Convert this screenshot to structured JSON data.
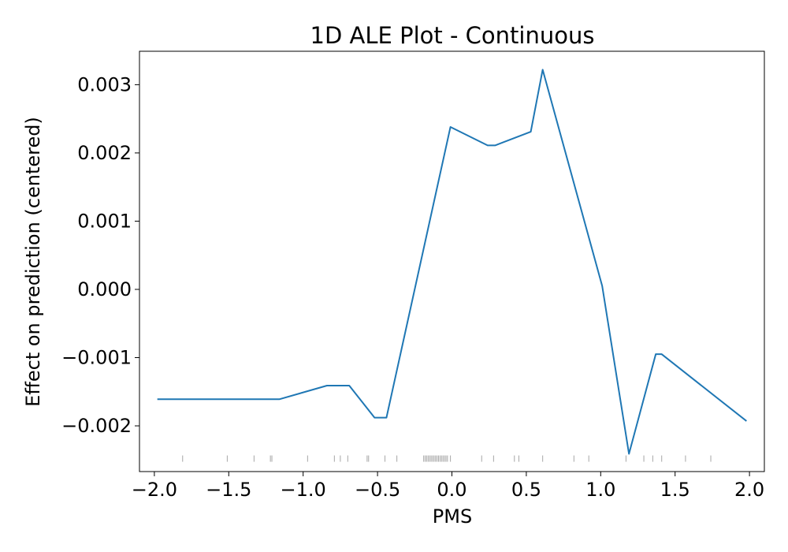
{
  "chart_data": {
    "type": "line",
    "title": "1D ALE Plot - Continuous",
    "xlabel": "PMS",
    "ylabel": "Effect on prediction (centered)",
    "xlim": [
      -2.1,
      2.1
    ],
    "ylim": [
      -0.00267,
      0.00349
    ],
    "xticks": [
      -2.0,
      -1.5,
      -1.0,
      -0.5,
      0.0,
      0.5,
      1.0,
      1.5,
      2.0
    ],
    "xtick_labels": [
      "−2.0",
      "−1.5",
      "−1.0",
      "−0.5",
      "0.0",
      "0.5",
      "1.0",
      "1.5",
      "2.0"
    ],
    "yticks": [
      -0.002,
      -0.001,
      0.0,
      0.001,
      0.002,
      0.003
    ],
    "ytick_labels": [
      "−0.002",
      "−0.001",
      "0.000",
      "0.001",
      "0.002",
      "0.003"
    ],
    "grid": false,
    "line_color": "#1f77b4",
    "series": [
      {
        "x": [
          -1.98,
          -1.8,
          -1.5,
          -1.2,
          -1.16,
          -0.84,
          -0.69,
          -0.52,
          -0.44,
          -0.01,
          0.24,
          0.29,
          0.53,
          0.61,
          1.01,
          1.19,
          1.37,
          1.41,
          1.98
        ],
        "y": [
          -0.00161,
          -0.00161,
          -0.00161,
          -0.00161,
          -0.00161,
          -0.00141,
          -0.00141,
          -0.00188,
          -0.00188,
          0.00238,
          0.00211,
          0.00211,
          0.00231,
          0.00322,
          5e-05,
          -0.00241,
          -0.00095,
          -0.00095,
          -0.00193
        ]
      }
    ],
    "rug": {
      "y": -0.00248,
      "color": "#808080",
      "x": [
        -1.81,
        -1.51,
        -1.33,
        -1.22,
        -1.21,
        -0.97,
        -0.79,
        -0.75,
        -0.7,
        -0.57,
        -0.56,
        -0.45,
        -0.37,
        -0.19,
        -0.18,
        -0.17,
        -0.16,
        -0.15,
        -0.14,
        -0.13,
        -0.12,
        -0.11,
        -0.1,
        -0.09,
        -0.08,
        -0.07,
        -0.06,
        -0.05,
        -0.04,
        -0.03,
        -0.01,
        0.2,
        0.28,
        0.42,
        0.45,
        0.61,
        0.82,
        0.92,
        1.17,
        1.29,
        1.35,
        1.41,
        1.57,
        1.74
      ]
    }
  }
}
